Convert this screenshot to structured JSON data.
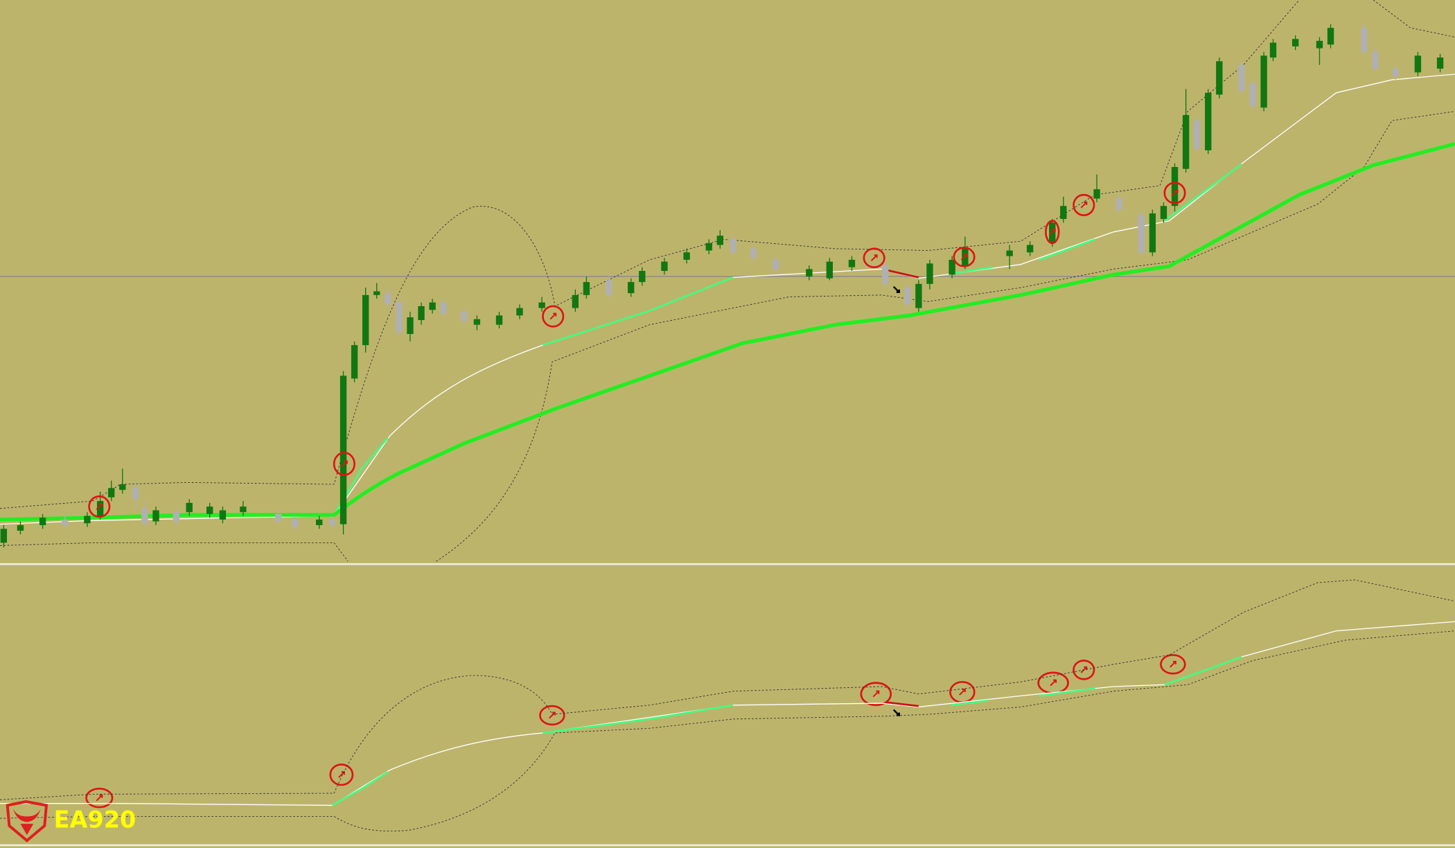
{
  "logo": {
    "text": "EA920"
  }
}
